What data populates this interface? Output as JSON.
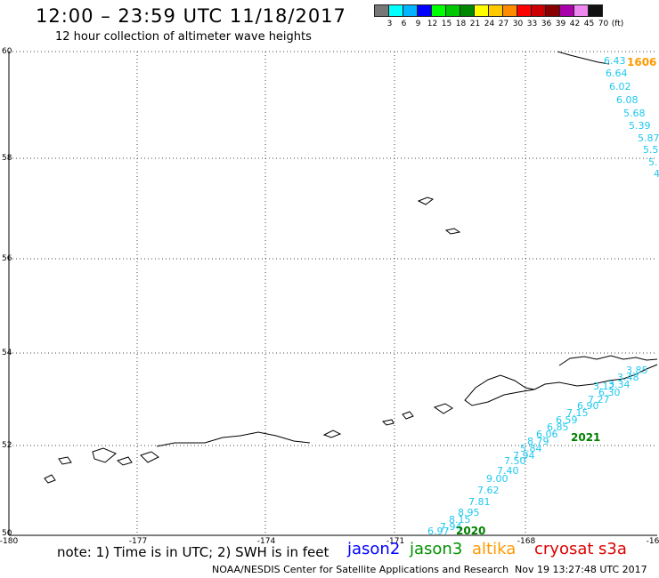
{
  "header": {
    "title": "12:00 – 23:59 UTC 11/18/2017",
    "subtitle": "12 hour collection of altimeter wave heights"
  },
  "color_scale": {
    "colors": [
      "#777777",
      "#00ffff",
      "#00b4ff",
      "#0000ff",
      "#00ff00",
      "#00c800",
      "#008800",
      "#ffff00",
      "#ffc800",
      "#ff8c00",
      "#ff0000",
      "#cc0000",
      "#880000",
      "#aa00aa",
      "#ee88ee",
      "#111111"
    ],
    "labels": [
      "3",
      "6",
      "9",
      "12",
      "15",
      "18",
      "21",
      "24",
      "27",
      "30",
      "33",
      "36",
      "39",
      "42",
      "45",
      "70",
      "(ft)"
    ]
  },
  "map": {
    "lat_labels": [
      "60",
      "58",
      "56",
      "54",
      "52",
      "50"
    ],
    "lon_labels": [
      "-180",
      "-177",
      "-174",
      "-171",
      "-168",
      "-16"
    ],
    "pass_labels": [
      {
        "text": "1606",
        "color": "#ff9a00"
      },
      {
        "text": "2021",
        "color": "#008000"
      },
      {
        "text": "2020",
        "color": "#008000"
      }
    ],
    "wave_values_north": [
      "6.43",
      "6.64",
      "6.02",
      "6.08",
      "5.68",
      "5.39",
      "5.87",
      "5.5",
      "5.",
      "4."
    ],
    "wave_values_east": [
      "3.85",
      "3.48",
      "3.34",
      "3.12",
      "6.30",
      "7.27",
      "6.90",
      "7.15",
      "6.59",
      "6.85",
      "6.06",
      "8.79",
      "5.84",
      "7.94"
    ],
    "wave_values_west": [
      "7.50",
      "7.40",
      "9.00",
      "7.62",
      "7.81",
      "8.95",
      "8.15",
      "7.94",
      "6.97"
    ]
  },
  "footer": {
    "note": "note: 1) Time is in UTC; 2) SWH is in feet",
    "satellites": [
      {
        "name": "jason2",
        "color": "#0000ff"
      },
      {
        "name": "jason3",
        "color": "#009000"
      },
      {
        "name": "altika",
        "color": "#ff9a00"
      },
      {
        "name": "cryosat",
        "color": "#dd0000"
      },
      {
        "name": "s3a",
        "color": "#dd0000"
      }
    ],
    "credit": "NOAA/NESDIS Center for Satellite Applications and Research",
    "timestamp": "Nov 19 13:27:48 UTC 2017"
  }
}
